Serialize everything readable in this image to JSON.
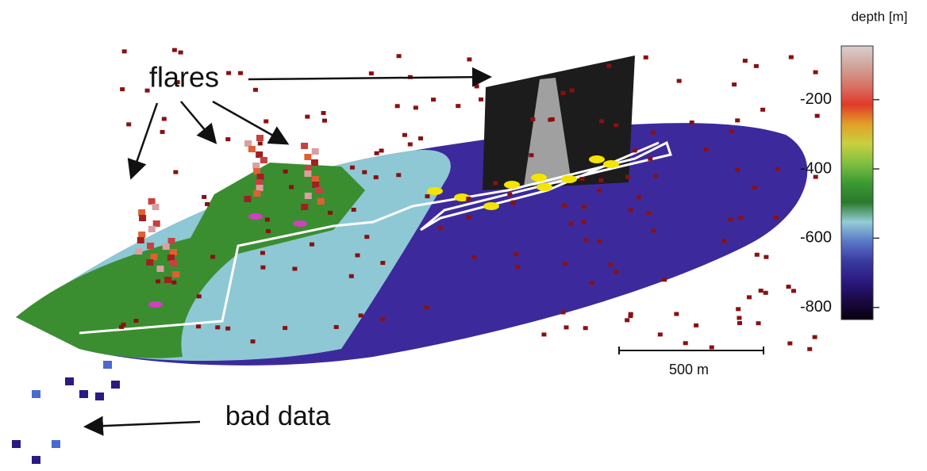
{
  "labels": {
    "flares": "flares",
    "bad_data": "bad data"
  },
  "scale_bar": {
    "label": "500 m"
  },
  "colorbar": {
    "title": "depth [m]",
    "lim": [
      -45,
      -835
    ],
    "ticks": [
      -200,
      -400,
      -600,
      -800
    ],
    "colors": [
      "#dccfcc",
      "#cfa59c",
      "#d87468",
      "#e03a2a",
      "#e2a028",
      "#c8d040",
      "#80c040",
      "#3c9a34",
      "#2a7a2a",
      "#94ccd6",
      "#5a78c8",
      "#3a3aa0",
      "#2c1a82",
      "#1a0a44",
      "#08000e"
    ]
  }
}
